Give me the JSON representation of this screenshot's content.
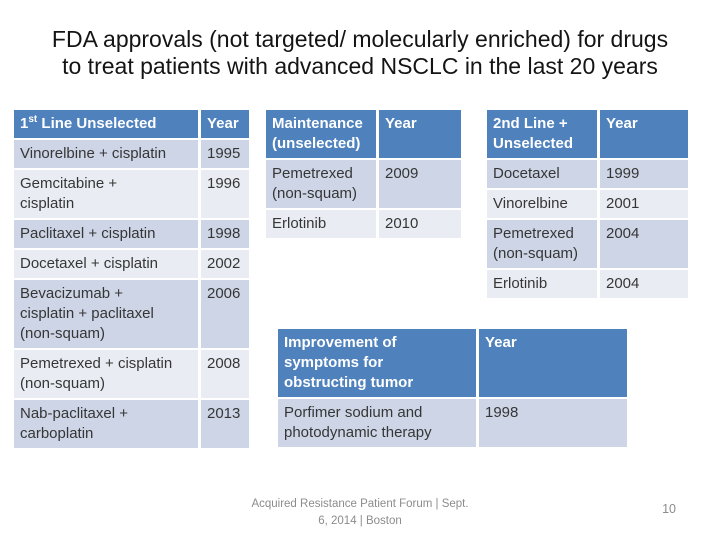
{
  "colors": {
    "header_bg": "#4f81bd",
    "row_dark": "#cdd5e6",
    "row_light": "#e9edf3",
    "header_text": "#ffffff",
    "body_text": "#363636",
    "title_text": "#141414",
    "footer_text": "#8c8c8c"
  },
  "slide": {
    "title": "FDA approvals (not targeted/ molecularly enriched) for drugs\nto treat patients with advanced NSCLC in the last 20 years"
  },
  "table_first_line": {
    "header": {
      "col1_num": "1",
      "col1_sup": "st",
      "col1_text": " Line Unselected",
      "col2": "Year"
    },
    "rows": [
      {
        "drug": "Vinorelbine + cisplatin",
        "year": "1995"
      },
      {
        "drug": "Gemcitabine +\ncisplatin",
        "year": "1996"
      },
      {
        "drug": "Paclitaxel + cisplatin",
        "year": "1998"
      },
      {
        "drug": "Docetaxel + cisplatin",
        "year": "2002"
      },
      {
        "drug": "Bevacizumab +\ncisplatin + paclitaxel\n(non-squam)",
        "year": "2006"
      },
      {
        "drug": "Pemetrexed + cisplatin\n(non-squam)",
        "year": "2008"
      },
      {
        "drug": "Nab-paclitaxel +\ncarboplatin",
        "year": "2013"
      }
    ]
  },
  "table_maintenance": {
    "header": {
      "col1": "Maintenance\n(unselected)",
      "col2": "Year"
    },
    "rows": [
      {
        "drug": "Pemetrexed\n(non-squam)",
        "year": "2009"
      },
      {
        "drug": "Erlotinib",
        "year": "2010"
      }
    ]
  },
  "table_second_line": {
    "header": {
      "col1": "2nd Line +\nUnselected",
      "col2": "Year"
    },
    "rows": [
      {
        "drug": "Docetaxel",
        "year": "1999"
      },
      {
        "drug": "Vinorelbine",
        "year": "2001"
      },
      {
        "drug": "Pemetrexed\n(non-squam)",
        "year": "2004"
      },
      {
        "drug": "Erlotinib",
        "year": "2004"
      }
    ]
  },
  "table_symptoms": {
    "header": {
      "col1": "Improvement of\nsymptoms  for\nobstructing tumor",
      "col2": "Year"
    },
    "rows": [
      {
        "drug": "Porfimer sodium and\nphotodynamic therapy",
        "year": "1998"
      }
    ]
  },
  "footer": {
    "credit": "Acquired Resistance Patient Forum | Sept.\n6, 2014 | Boston",
    "page_number": "10"
  }
}
